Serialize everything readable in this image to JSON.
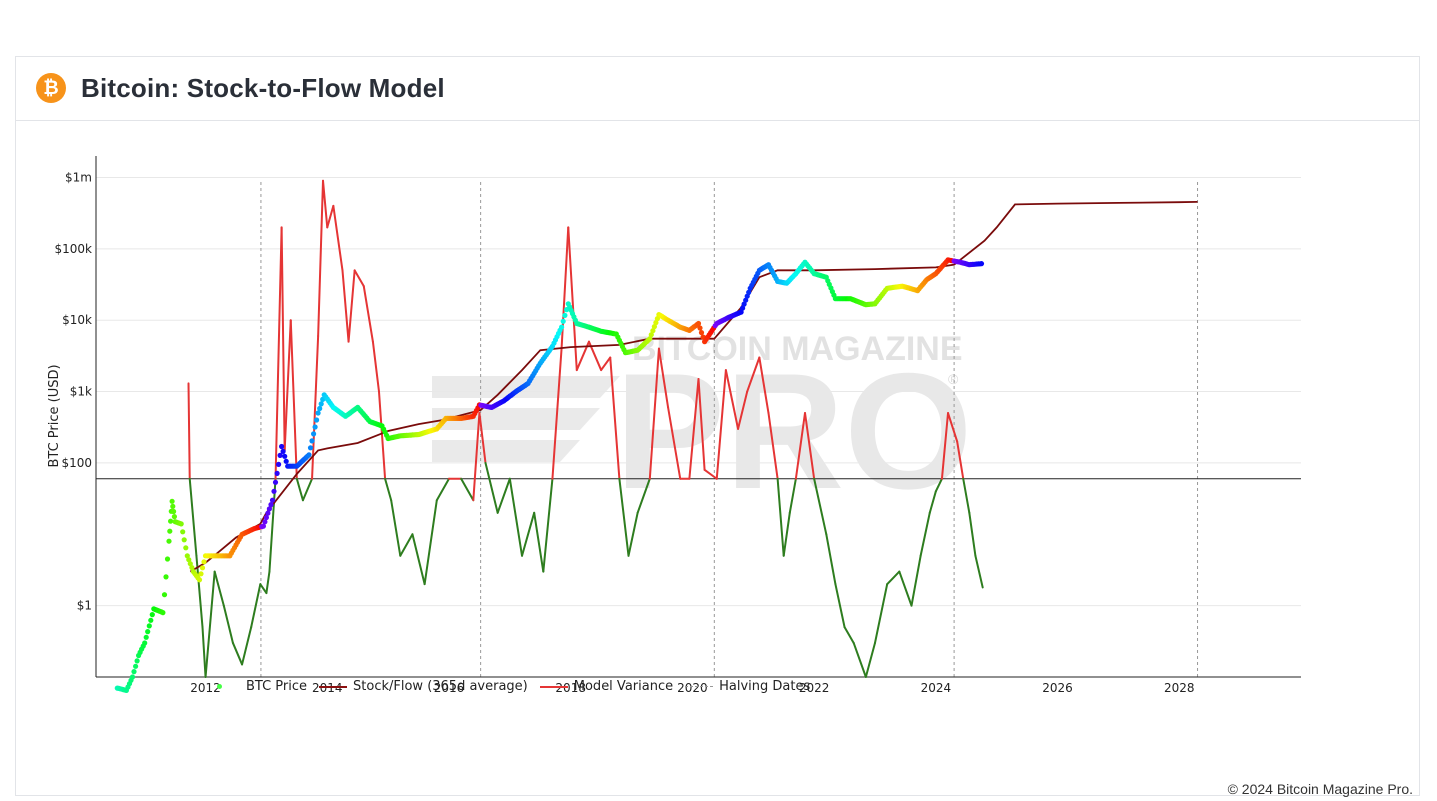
{
  "header": {
    "title": "Bitcoin: Stock-to-Flow Model",
    "logo_glyph": "₿",
    "logo_color": "#f7931a"
  },
  "watermark": {
    "top_text": "BITCOIN MAGAZINE",
    "main_text": "PRO",
    "reg": "®"
  },
  "footer": {
    "copyright": "© 2024 Bitcoin Magazine Pro."
  },
  "legend": [
    {
      "label": "BTC Price",
      "kind": "dot"
    },
    {
      "label": "Stock/Flow (365d average)",
      "kind": "s2f"
    },
    {
      "label": "Model Variance",
      "kind": "var"
    },
    {
      "label": "Halving Dates",
      "kind": "halv"
    }
  ],
  "chart_data": {
    "type": "line",
    "ylabel": "BTC Price (USD)",
    "yscale": "log",
    "ylim": [
      0.1,
      2000000
    ],
    "xlim": [
      2010.2,
      2030.0
    ],
    "x_ticks": [
      "2012",
      "2014",
      "2016",
      "2018",
      "2020",
      "2022",
      "2024",
      "2026",
      "2028"
    ],
    "y_ticks": [
      {
        "value": 1,
        "label": "$1"
      },
      {
        "value": 100,
        "label": "$100"
      },
      {
        "value": 1000,
        "label": "$1k"
      },
      {
        "value": 10000,
        "label": "$10k"
      },
      {
        "value": 100000,
        "label": "$100k"
      },
      {
        "value": 1000000,
        "label": "$1m"
      }
    ],
    "halving_dates": [
      2012.91,
      2016.52,
      2020.36,
      2024.3,
      2028.3
    ],
    "variance_baseline": 60,
    "colors": {
      "s2f": "#7a0b0b",
      "variance_high": "#e53535",
      "variance_low": "#2e7d1f",
      "grid": "#e8e8e8"
    },
    "series": [
      {
        "name": "BTC Price",
        "points": [
          [
            2010.55,
            0.07
          ],
          [
            2010.7,
            0.065
          ],
          [
            2010.8,
            0.1
          ],
          [
            2010.9,
            0.2
          ],
          [
            2011.0,
            0.3
          ],
          [
            2011.15,
            0.9
          ],
          [
            2011.3,
            0.8
          ],
          [
            2011.4,
            8
          ],
          [
            2011.45,
            29
          ],
          [
            2011.5,
            15
          ],
          [
            2011.6,
            14
          ],
          [
            2011.7,
            5
          ],
          [
            2011.8,
            3
          ],
          [
            2011.9,
            2.3
          ],
          [
            2012.0,
            5
          ],
          [
            2012.2,
            5
          ],
          [
            2012.4,
            5
          ],
          [
            2012.6,
            10
          ],
          [
            2012.8,
            12
          ],
          [
            2012.95,
            13
          ],
          [
            2013.1,
            30
          ],
          [
            2013.25,
            170
          ],
          [
            2013.35,
            90
          ],
          [
            2013.5,
            90
          ],
          [
            2013.7,
            130
          ],
          [
            2013.85,
            500
          ],
          [
            2013.95,
            900
          ],
          [
            2014.1,
            600
          ],
          [
            2014.3,
            450
          ],
          [
            2014.5,
            600
          ],
          [
            2014.7,
            380
          ],
          [
            2014.9,
            330
          ],
          [
            2015.0,
            220
          ],
          [
            2015.2,
            240
          ],
          [
            2015.5,
            250
          ],
          [
            2015.8,
            300
          ],
          [
            2015.95,
            420
          ],
          [
            2016.2,
            420
          ],
          [
            2016.4,
            450
          ],
          [
            2016.5,
            650
          ],
          [
            2016.7,
            600
          ],
          [
            2016.9,
            740
          ],
          [
            2017.1,
            1000
          ],
          [
            2017.3,
            1300
          ],
          [
            2017.5,
            2500
          ],
          [
            2017.7,
            4300
          ],
          [
            2017.85,
            8000
          ],
          [
            2017.96,
            17000
          ],
          [
            2018.1,
            9000
          ],
          [
            2018.3,
            8000
          ],
          [
            2018.5,
            7000
          ],
          [
            2018.75,
            6400
          ],
          [
            2018.9,
            3500
          ],
          [
            2019.1,
            3800
          ],
          [
            2019.3,
            5500
          ],
          [
            2019.45,
            12000
          ],
          [
            2019.6,
            10000
          ],
          [
            2019.8,
            8000
          ],
          [
            2019.95,
            7200
          ],
          [
            2020.1,
            9000
          ],
          [
            2020.2,
            5000
          ],
          [
            2020.4,
            9000
          ],
          [
            2020.6,
            11000
          ],
          [
            2020.8,
            13000
          ],
          [
            2020.95,
            28000
          ],
          [
            2021.1,
            50000
          ],
          [
            2021.25,
            60000
          ],
          [
            2021.4,
            35000
          ],
          [
            2021.55,
            33000
          ],
          [
            2021.7,
            45000
          ],
          [
            2021.85,
            65000
          ],
          [
            2022.0,
            45000
          ],
          [
            2022.2,
            40000
          ],
          [
            2022.35,
            20000
          ],
          [
            2022.6,
            20000
          ],
          [
            2022.85,
            16500
          ],
          [
            2023.0,
            17000
          ],
          [
            2023.2,
            28000
          ],
          [
            2023.45,
            30000
          ],
          [
            2023.7,
            26000
          ],
          [
            2023.85,
            37000
          ],
          [
            2024.0,
            45000
          ],
          [
            2024.2,
            70000
          ],
          [
            2024.4,
            65000
          ],
          [
            2024.55,
            60000
          ],
          [
            2024.75,
            62000
          ]
        ]
      },
      {
        "name": "Stock/Flow (365d average)",
        "points": [
          [
            2011.75,
            3
          ],
          [
            2012.0,
            4
          ],
          [
            2012.2,
            5.5
          ],
          [
            2012.5,
            9
          ],
          [
            2012.9,
            14
          ],
          [
            2013.0,
            20
          ],
          [
            2013.5,
            70
          ],
          [
            2013.85,
            150
          ],
          [
            2014.0,
            160
          ],
          [
            2014.5,
            190
          ],
          [
            2015.0,
            280
          ],
          [
            2015.5,
            350
          ],
          [
            2015.9,
            400
          ],
          [
            2016.52,
            550
          ],
          [
            2016.8,
            900
          ],
          [
            2017.2,
            2000
          ],
          [
            2017.5,
            3800
          ],
          [
            2018.0,
            4200
          ],
          [
            2018.8,
            4500
          ],
          [
            2019.3,
            5500
          ],
          [
            2020.0,
            5500
          ],
          [
            2020.36,
            5500
          ],
          [
            2020.8,
            15000
          ],
          [
            2021.1,
            40000
          ],
          [
            2021.4,
            50000
          ],
          [
            2022.0,
            50000
          ],
          [
            2023.0,
            52000
          ],
          [
            2024.0,
            55000
          ],
          [
            2024.3,
            60000
          ],
          [
            2024.8,
            130000
          ],
          [
            2025.0,
            200000
          ],
          [
            2025.3,
            420000
          ],
          [
            2026.0,
            430000
          ],
          [
            2027.0,
            440000
          ],
          [
            2028.0,
            450000
          ],
          [
            2028.3,
            455000
          ]
        ]
      },
      {
        "name": "Model Variance",
        "points": [
          [
            2011.72,
            1300
          ],
          [
            2011.74,
            60
          ],
          [
            2011.85,
            5
          ],
          [
            2011.95,
            0.5
          ],
          [
            2012.0,
            0.1
          ],
          [
            2012.15,
            3
          ],
          [
            2012.3,
            1
          ],
          [
            2012.45,
            0.3
          ],
          [
            2012.6,
            0.15
          ],
          [
            2012.75,
            0.5
          ],
          [
            2012.9,
            2
          ],
          [
            2013.0,
            1.5
          ],
          [
            2013.05,
            3
          ],
          [
            2013.15,
            60
          ],
          [
            2013.25,
            200000
          ],
          [
            2013.3,
            150
          ],
          [
            2013.4,
            10000
          ],
          [
            2013.5,
            60
          ],
          [
            2013.6,
            30
          ],
          [
            2013.75,
            60
          ],
          [
            2013.85,
            6000
          ],
          [
            2013.93,
            900000
          ],
          [
            2014.0,
            200000
          ],
          [
            2014.1,
            400000
          ],
          [
            2014.25,
            50000
          ],
          [
            2014.35,
            5000
          ],
          [
            2014.45,
            50000
          ],
          [
            2014.6,
            30000
          ],
          [
            2014.75,
            5000
          ],
          [
            2014.85,
            1000
          ],
          [
            2014.95,
            60
          ],
          [
            2015.05,
            30
          ],
          [
            2015.2,
            5
          ],
          [
            2015.4,
            10
          ],
          [
            2015.6,
            2
          ],
          [
            2015.8,
            30
          ],
          [
            2016.0,
            60
          ],
          [
            2016.2,
            60
          ],
          [
            2016.4,
            30
          ],
          [
            2016.5,
            500
          ],
          [
            2016.6,
            100
          ],
          [
            2016.8,
            20
          ],
          [
            2017.0,
            60
          ],
          [
            2017.2,
            5
          ],
          [
            2017.4,
            20
          ],
          [
            2017.55,
            3
          ],
          [
            2017.7,
            60
          ],
          [
            2017.85,
            4000
          ],
          [
            2017.96,
            200000
          ],
          [
            2018.1,
            2000
          ],
          [
            2018.3,
            5000
          ],
          [
            2018.5,
            2000
          ],
          [
            2018.65,
            3000
          ],
          [
            2018.8,
            60
          ],
          [
            2018.95,
            5
          ],
          [
            2019.1,
            20
          ],
          [
            2019.3,
            60
          ],
          [
            2019.45,
            4000
          ],
          [
            2019.6,
            600
          ],
          [
            2019.8,
            60
          ],
          [
            2019.95,
            60
          ],
          [
            2020.1,
            1500
          ],
          [
            2020.2,
            80
          ],
          [
            2020.4,
            60
          ],
          [
            2020.55,
            2000
          ],
          [
            2020.75,
            300
          ],
          [
            2020.9,
            1000
          ],
          [
            2021.1,
            3000
          ],
          [
            2021.25,
            500
          ],
          [
            2021.4,
            60
          ],
          [
            2021.5,
            5
          ],
          [
            2021.6,
            20
          ],
          [
            2021.7,
            60
          ],
          [
            2021.85,
            500
          ],
          [
            2022.0,
            60
          ],
          [
            2022.2,
            10
          ],
          [
            2022.35,
            2
          ],
          [
            2022.5,
            0.5
          ],
          [
            2022.65,
            0.3
          ],
          [
            2022.85,
            0.1
          ],
          [
            2023.0,
            0.3
          ],
          [
            2023.2,
            2
          ],
          [
            2023.4,
            3
          ],
          [
            2023.6,
            1
          ],
          [
            2023.75,
            5
          ],
          [
            2023.9,
            20
          ],
          [
            2024.0,
            40
          ],
          [
            2024.1,
            60
          ],
          [
            2024.2,
            500
          ],
          [
            2024.35,
            200
          ],
          [
            2024.45,
            60
          ],
          [
            2024.55,
            20
          ],
          [
            2024.65,
            5
          ],
          [
            2024.77,
            1.8
          ]
        ]
      },
      {
        "name": "Halving Dates",
        "points": []
      }
    ]
  }
}
